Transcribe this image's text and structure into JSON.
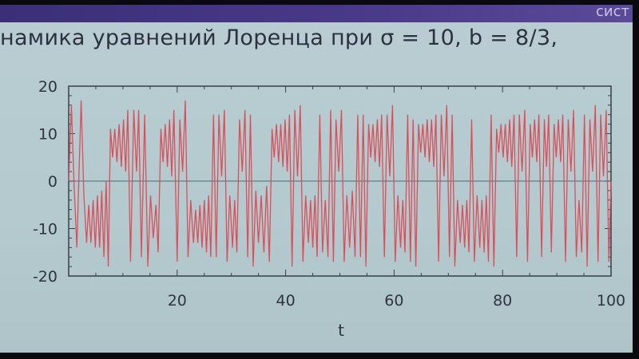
{
  "slide": {
    "header_band_text": "сист",
    "title": "намика уравнений Лоренца при σ = 10, b = 8/3,"
  },
  "colors": {
    "series": "#d8505a",
    "axis": "#3a3f4a",
    "zero_line": "#4a6a78",
    "background": "#b6cbd0"
  },
  "chart_data": {
    "type": "line",
    "title": "",
    "xlabel": "t",
    "ylabel": "",
    "xlim": [
      0,
      100
    ],
    "ylim": [
      -20,
      20
    ],
    "xticks": [
      20,
      40,
      60,
      80,
      100
    ],
    "yticks": [
      20,
      10,
      0,
      -10,
      -20
    ],
    "xtick_labels": [
      "20",
      "40",
      "60",
      "80",
      "100"
    ],
    "ytick_labels": [
      "20",
      "10",
      "0",
      "-10",
      "-20"
    ],
    "zero_line": true,
    "grid": false,
    "x": [
      0,
      0.5,
      1.0,
      1.5,
      2.3,
      2.8,
      3.3,
      3.7,
      4.1,
      4.5,
      4.9,
      5.3,
      5.7,
      6.1,
      6.5,
      6.9,
      7.3,
      7.7,
      8.1,
      8.5,
      8.9,
      9.3,
      9.7,
      10.1,
      10.5,
      10.9,
      11.4,
      12.0,
      12.5,
      12.9,
      13.4,
      14.0,
      14.6,
      15.1,
      15.6,
      16.1,
      16.5,
      17.0,
      17.4,
      17.8,
      18.2,
      18.6,
      19.0,
      19.4,
      20.0,
      20.5,
      21.0,
      21.5,
      22.0,
      22.5,
      23.0,
      23.4,
      23.8,
      24.2,
      24.6,
      25.0,
      25.4,
      25.8,
      26.2,
      26.7,
      27.2,
      27.7,
      28.2,
      28.7,
      29.2,
      29.7,
      30.2,
      30.6,
      31.0,
      31.5,
      32.0,
      32.5,
      33.0,
      33.5,
      34.0,
      34.5,
      35.0,
      35.5,
      36.0,
      36.5,
      37.0,
      37.5,
      37.9,
      38.3,
      38.7,
      39.1,
      39.5,
      39.9,
      40.3,
      40.7,
      41.2,
      41.7,
      42.2,
      42.7,
      43.2,
      43.7,
      44.2,
      44.6,
      45.0,
      45.4,
      45.8,
      46.3,
      46.8,
      47.3,
      47.8,
      48.3,
      48.8,
      49.3,
      49.8,
      50.3,
      50.8,
      51.3,
      51.8,
      52.3,
      52.8,
      53.3,
      53.8,
      54.3,
      54.8,
      55.3,
      55.7,
      56.1,
      56.5,
      56.9,
      57.3,
      57.7,
      58.2,
      58.7,
      59.2,
      59.7,
      60.2,
      60.7,
      61.2,
      61.6,
      62.0,
      62.5,
      63.0,
      63.5,
      64.0,
      64.5,
      64.9,
      65.3,
      65.7,
      66.1,
      66.5,
      66.9,
      67.3,
      67.7,
      68.2,
      68.7,
      69.2,
      69.7,
      70.2,
      70.7,
      71.2,
      71.7,
      72.2,
      72.6,
      73.0,
      73.4,
      73.8,
      74.3,
      74.8,
      75.3,
      75.8,
      76.2,
      76.6,
      77.0,
      77.4,
      77.9,
      78.4,
      78.9,
      79.3,
      79.7,
      80.1,
      80.5,
      80.9,
      81.3,
      81.7,
      82.1,
      82.6,
      83.1,
      83.6,
      84.1,
      84.6,
      85.1,
      85.5,
      85.9,
      86.3,
      86.7,
      87.2,
      87.7,
      88.1,
      88.5,
      89.0,
      89.5,
      89.9,
      90.3,
      90.7,
      91.1,
      91.6,
      92.1,
      92.6,
      93.1,
      93.6,
      94.1,
      94.6,
      95.1,
      95.6,
      96.1,
      96.6,
      97.1,
      97.6,
      98.1,
      98.6,
      99.1,
      99.6,
      100
    ],
    "y": [
      0,
      16,
      -1,
      -14,
      17,
      -3,
      -13,
      -5,
      -13,
      -4,
      -14,
      -3,
      -14,
      -2,
      -16,
      0,
      -18,
      11,
      5,
      11,
      4,
      12,
      3,
      13,
      2,
      15,
      -17,
      15,
      2,
      15,
      -16,
      14,
      -18,
      -3,
      -12,
      -5,
      -15,
      11,
      4,
      12,
      3,
      13,
      1,
      15,
      -17,
      13,
      2,
      17,
      -16,
      -4,
      -13,
      -6,
      -13,
      -5,
      -14,
      -4,
      -15,
      -3,
      -16,
      14,
      -16,
      14,
      1,
      15,
      -17,
      -3,
      -14,
      -4,
      -15,
      13,
      2,
      15,
      -16,
      14,
      -18,
      -2,
      -13,
      -3,
      -15,
      -1,
      -17,
      11,
      5,
      12,
      4,
      12,
      3,
      13,
      2,
      14,
      -18,
      15,
      1,
      16,
      -17,
      -3,
      -13,
      -4,
      -14,
      -3,
      -16,
      14,
      -15,
      -4,
      -16,
      15,
      -17,
      13,
      2,
      15,
      -17,
      -3,
      -14,
      -2,
      -16,
      14,
      -16,
      14,
      -18,
      12,
      5,
      12,
      4,
      13,
      3,
      14,
      -16,
      14,
      1,
      16,
      -17,
      -3,
      -14,
      -4,
      -15,
      14,
      -17,
      13,
      -18,
      12,
      6,
      12,
      5,
      13,
      4,
      13,
      3,
      14,
      -17,
      14,
      1,
      16,
      -16,
      14,
      -18,
      -4,
      -13,
      -5,
      -14,
      -4,
      -15,
      13,
      -17,
      -3,
      -14,
      -4,
      -15,
      -3,
      -17,
      14,
      -18,
      11,
      6,
      12,
      5,
      12,
      4,
      13,
      3,
      14,
      -16,
      14,
      2,
      15,
      -17,
      12,
      5,
      13,
      4,
      14,
      -16,
      13,
      3,
      14,
      -15,
      12,
      5,
      13,
      4,
      14,
      -17,
      13,
      2,
      15,
      -16,
      -4,
      -15,
      14,
      -18,
      13,
      2,
      16,
      -17,
      14,
      1,
      15,
      -17,
      0
    ]
  }
}
